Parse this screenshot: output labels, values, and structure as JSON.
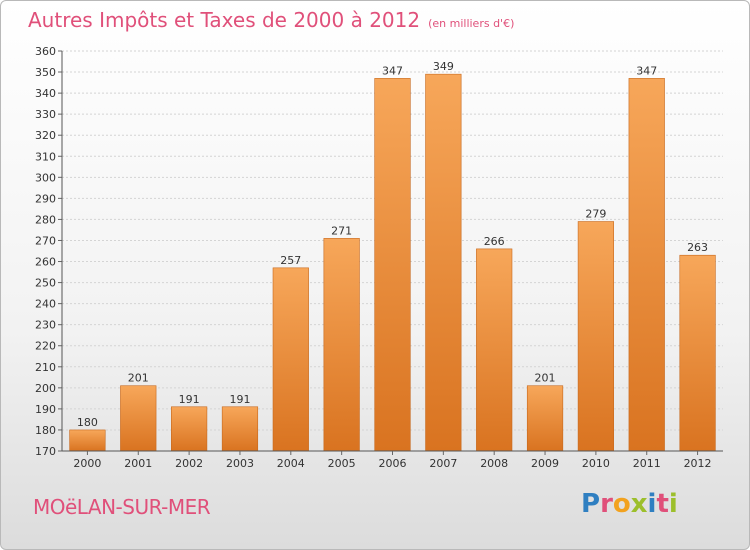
{
  "header": {
    "title": "Autres Impôts et Taxes de 2000 à 2012",
    "subtitle": "(en milliers d'€)"
  },
  "footer": {
    "town": "MOëLAN-SUR-MER",
    "logo_letters": [
      "P",
      "r",
      "o",
      "x",
      "i",
      "t",
      "i"
    ],
    "logo_colors": [
      "#2f7fc1",
      "#e0507a",
      "#f2a21f",
      "#9cbf2b",
      "#2f7fc1",
      "#e0507a",
      "#9cbf2b"
    ]
  },
  "chart_data": {
    "type": "bar",
    "title": "Autres Impôts et Taxes de 2000 à 2012",
    "subtitle": "(en milliers d'€)",
    "categories": [
      "2000",
      "2001",
      "2002",
      "2003",
      "2004",
      "2005",
      "2006",
      "2007",
      "2008",
      "2009",
      "2010",
      "2011",
      "2012"
    ],
    "values": [
      180,
      201,
      191,
      191,
      257,
      271,
      347,
      349,
      266,
      201,
      279,
      347,
      263
    ],
    "ylim": [
      170,
      360
    ],
    "ytick_step": 10,
    "grid": true,
    "bar_color_top": "#f7a75a",
    "bar_color_bottom": "#d97320"
  }
}
